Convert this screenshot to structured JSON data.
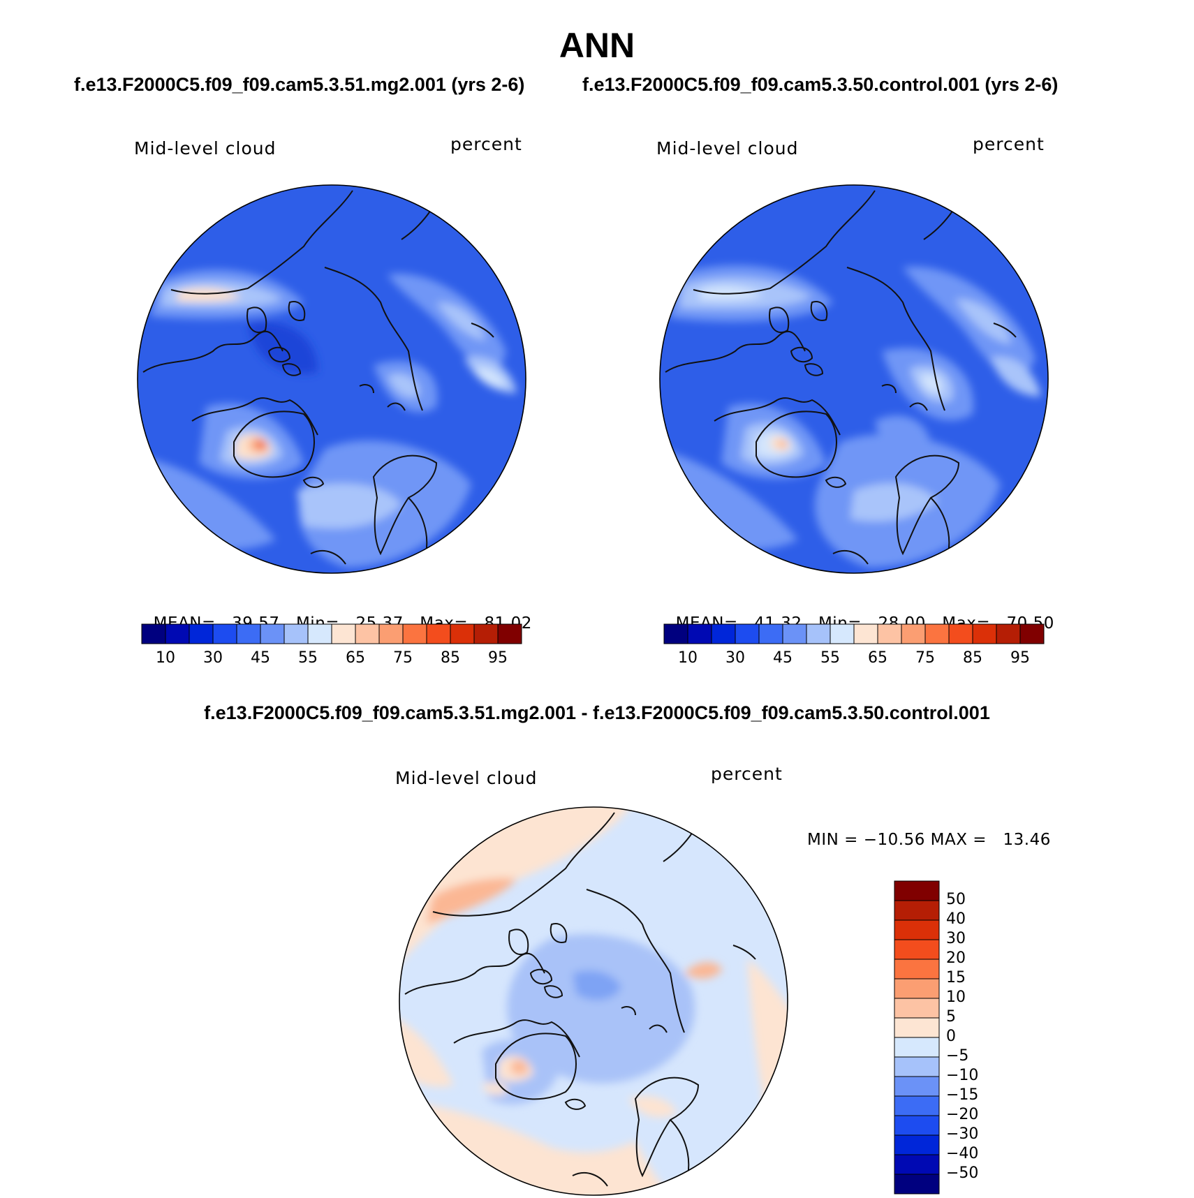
{
  "page": {
    "title": "ANN",
    "case1_title": "f.e13.F2000C5.f09_f09.cam5.3.51.mg2.001 (yrs 2-6)",
    "case2_title": "f.e13.F2000C5.f09_f09.cam5.3.50.control.001 (yrs 2-6)",
    "diff_title": "f.e13.F2000C5.f09_f09.cam5.3.51.mg2.001 - f.e13.F2000C5.f09_f09.cam5.3.50.control.001"
  },
  "panels": [
    {
      "variable": "Mid-level cloud",
      "units": "percent",
      "stats": {
        "mean_label": "MEAN=",
        "mean": "39.57",
        "min_label": "Min=",
        "min": "25.37",
        "max_label": "Max=",
        "max": "81.02"
      }
    },
    {
      "variable": "Mid-level cloud",
      "units": "percent",
      "stats": {
        "mean_label": "MEAN=",
        "mean": "41.32",
        "min_label": "Min=",
        "min": "28.00",
        "max_label": "Max=",
        "max": "70.50"
      }
    }
  ],
  "diff_panel": {
    "variable": "Mid-level cloud",
    "units": "percent",
    "minmax_text": "MIN = −10.56 MAX =   13.46"
  },
  "colorbar_abs": {
    "colors": [
      "#00007f",
      "#0009b3",
      "#0026d9",
      "#1d4cf0",
      "#3c6cf5",
      "#6b92f7",
      "#a6c2fa",
      "#d6e8fd",
      "#fde5d3",
      "#fdc3a4",
      "#fb9e72",
      "#fb7440",
      "#f34d1d",
      "#db3008",
      "#b51e05",
      "#800000"
    ],
    "tick_labels": [
      "10",
      "30",
      "45",
      "55",
      "65",
      "75",
      "85",
      "95"
    ]
  },
  "colorbar_diff": {
    "colors": [
      "#800000",
      "#b51e05",
      "#db3008",
      "#f34d1d",
      "#fb7440",
      "#fb9e72",
      "#fdc3a4",
      "#fde5d3",
      "#d6e8fd",
      "#a6c2fa",
      "#6b92f7",
      "#3c6cf5",
      "#1d4cf0",
      "#0026d9",
      "#0009b3",
      "#00007f"
    ],
    "tick_labels": [
      "50",
      "40",
      "30",
      "20",
      "15",
      "10",
      "5",
      "0",
      "−5",
      "−10",
      "−15",
      "−20",
      "−30",
      "−40",
      "−50"
    ]
  },
  "map_colors": {
    "ocean_base": "#2e5ee8",
    "light1": "#6f96f6",
    "light2": "#a9c4fa",
    "light3": "#d3e5fd",
    "warm1": "#fde2cc",
    "warm2": "#fbb08a",
    "warm3": "#f2643a",
    "dark1": "#1f45d8",
    "diff_base": "#d6e6fd",
    "diff_blue": "#a9c2f8",
    "diff_blue2": "#7ea3f4",
    "diff_warm": "#fde4d2",
    "diff_warm2": "#fbb794",
    "coast": "#111111"
  }
}
